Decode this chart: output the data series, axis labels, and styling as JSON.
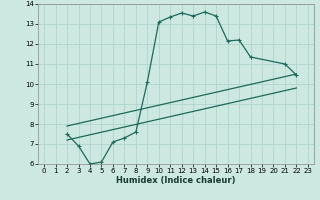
{
  "xlabel": "Humidex (Indice chaleur)",
  "xlim": [
    -0.5,
    23.5
  ],
  "ylim": [
    6,
    14
  ],
  "xticks": [
    0,
    1,
    2,
    3,
    4,
    5,
    6,
    7,
    8,
    9,
    10,
    11,
    12,
    13,
    14,
    15,
    16,
    17,
    18,
    19,
    20,
    21,
    22,
    23
  ],
  "yticks": [
    6,
    7,
    8,
    9,
    10,
    11,
    12,
    13,
    14
  ],
  "background_color": "#cce8e0",
  "line_color": "#1a6b5a",
  "grid_color": "#b0d4cc",
  "series": [
    {
      "x": [
        2,
        3,
        4,
        5,
        6,
        7,
        8,
        9,
        10,
        11,
        12,
        13,
        14,
        15,
        16,
        17,
        18,
        21,
        22
      ],
      "y": [
        7.5,
        6.9,
        6.0,
        6.1,
        7.1,
        7.3,
        7.6,
        10.1,
        13.1,
        13.35,
        13.55,
        13.4,
        13.6,
        13.4,
        12.15,
        12.2,
        11.35,
        11.0,
        10.45
      ]
    },
    {
      "x": [
        2,
        22
      ],
      "y": [
        7.9,
        10.5
      ]
    },
    {
      "x": [
        2,
        22
      ],
      "y": [
        7.2,
        9.8
      ]
    }
  ]
}
